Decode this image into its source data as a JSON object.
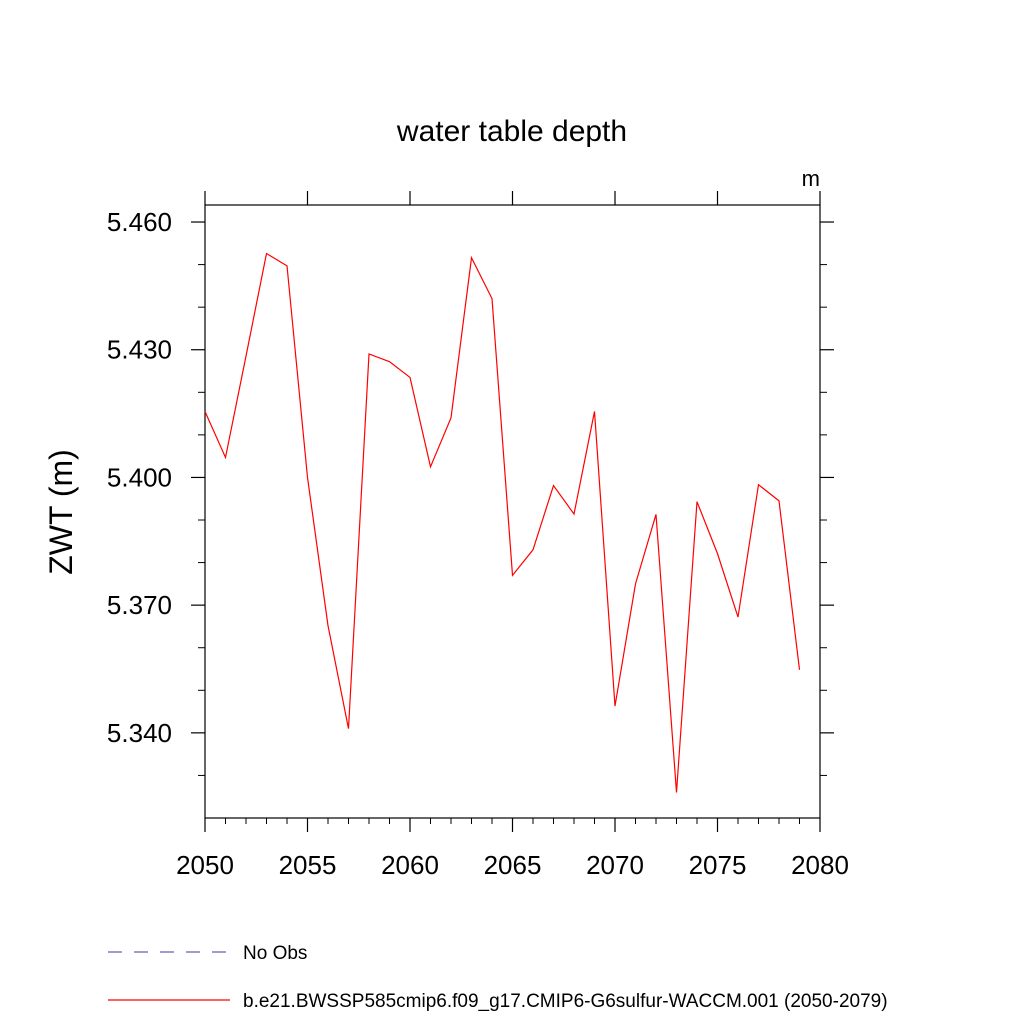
{
  "chart_data": {
    "type": "line",
    "title": "water table depth",
    "units_label": "m",
    "ylabel": "ZWT  (m)",
    "xlabel": "",
    "xlim": [
      2050,
      2080
    ],
    "ylim": [
      5.32,
      5.464
    ],
    "x_ticks": [
      2050,
      2055,
      2060,
      2065,
      2070,
      2075,
      2080
    ],
    "x_tick_labels": [
      "2050",
      "2055",
      "2060",
      "2065",
      "2070",
      "2075",
      "2080"
    ],
    "y_ticks": [
      5.34,
      5.37,
      5.4,
      5.43,
      5.46
    ],
    "y_tick_labels": [
      "5.340",
      "5.370",
      "5.400",
      "5.430",
      "5.460"
    ],
    "grid": false,
    "legend_placement": "bottom-left, below plot",
    "series": [
      {
        "name": "b.e21.BWSSP585cmip6.f09_g17.CMIP6-G6sulfur-WACCM.001 (2050-2079)",
        "color": "#ff0000",
        "dash": "solid",
        "x": [
          2050,
          2051,
          2052,
          2053,
          2054,
          2055,
          2056,
          2057,
          2058,
          2059,
          2060,
          2061,
          2062,
          2063,
          2064,
          2065,
          2066,
          2067,
          2068,
          2069,
          2070,
          2071,
          2072,
          2073,
          2074,
          2075,
          2076,
          2077,
          2078,
          2079
        ],
        "values": [
          5.4155,
          5.4047,
          5.4285,
          5.4526,
          5.4497,
          5.4,
          5.3652,
          5.341,
          5.429,
          5.4272,
          5.4235,
          5.4025,
          5.414,
          5.4516,
          5.442,
          5.377,
          5.383,
          5.3981,
          5.3914,
          5.4155,
          5.3463,
          5.375,
          5.3913,
          5.326,
          5.3943,
          5.3821,
          5.3672,
          5.3983,
          5.3945,
          5.3548
        ]
      }
    ],
    "legend": [
      {
        "label": "No Obs",
        "color": "#6b5fb0",
        "dash": "dashed"
      },
      {
        "label": "b.e21.BWSSP585cmip6.f09_g17.CMIP6-G6sulfur-WACCM.001 (2050-2079)",
        "color": "#ff0000",
        "dash": "solid"
      }
    ]
  }
}
